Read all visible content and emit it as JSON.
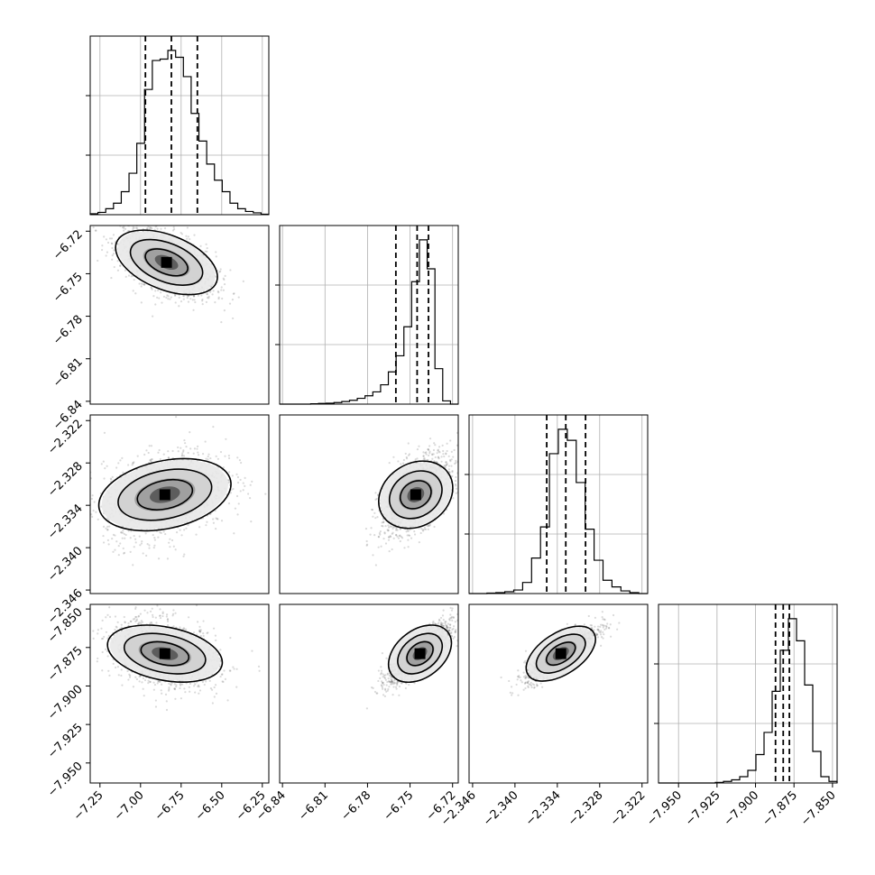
{
  "chart_data": {
    "type": "corner",
    "grid": true,
    "parameters": [
      {
        "ticks": [
          -7.25,
          -7.0,
          -6.75,
          -6.5,
          -6.25
        ],
        "tick_labels": [
          "−7.25",
          "−7.00",
          "−6.75",
          "−6.50",
          "−6.25"
        ],
        "range": [
          -7.31,
          -6.21
        ],
        "quantiles": [
          -6.97,
          -6.81,
          -6.65
        ]
      },
      {
        "ticks": [
          -6.84,
          -6.81,
          -6.78,
          -6.75,
          -6.72
        ],
        "tick_labels": [
          "−6.84",
          "−6.81",
          "−6.78",
          "−6.75",
          "−6.72"
        ],
        "range": [
          -6.842,
          -6.716
        ],
        "quantiles": [
          -6.76,
          -6.745,
          -6.737
        ]
      },
      {
        "ticks": [
          -2.346,
          -2.34,
          -2.334,
          -2.328,
          -2.322
        ],
        "tick_labels": [
          "−2.346",
          "−2.340",
          "−2.334",
          "−2.328",
          "−2.322"
        ],
        "range": [
          -2.3465,
          -2.3212
        ],
        "quantiles": [
          -2.3355,
          -2.3328,
          -2.33
        ]
      },
      {
        "ticks": [
          -7.95,
          -7.925,
          -7.9,
          -7.875,
          -7.85
        ],
        "tick_labels": [
          "−7.950",
          "−7.925",
          "−7.900",
          "−7.875",
          "−7.850"
        ],
        "range": [
          -7.963,
          -7.847
        ],
        "quantiles": [
          -7.887,
          -7.882,
          -7.878
        ]
      }
    ],
    "histograms": [
      {
        "counts": [
          2,
          5,
          13,
          25,
          50,
          90,
          155,
          272,
          335,
          338,
          357,
          342,
          300,
          220,
          160,
          110,
          75,
          50,
          25,
          13,
          7,
          4,
          1
        ]
      },
      {
        "counts": [
          0,
          0,
          0,
          0,
          1,
          2,
          3,
          5,
          8,
          12,
          18,
          26,
          38,
          60,
          100,
          150,
          240,
          380,
          510,
          420,
          110,
          10,
          0
        ]
      },
      {
        "counts": [
          0,
          0,
          1,
          2,
          4,
          8,
          25,
          80,
          150,
          315,
          370,
          345,
          250,
          145,
          75,
          30,
          15,
          6,
          2,
          0
        ]
      },
      {
        "counts": [
          0,
          0,
          0,
          0,
          0,
          0,
          0,
          2,
          5,
          10,
          20,
          40,
          90,
          160,
          290,
          420,
          520,
          450,
          310,
          100,
          20,
          5
        ]
      }
    ],
    "pairs": [
      {
        "x": 0,
        "y": 1,
        "mean": [
          -6.84,
          -6.742
        ],
        "sd": [
          0.12,
          0.01
        ],
        "rho": -0.55
      },
      {
        "x": 0,
        "y": 2,
        "mean": [
          -6.85,
          -2.3325
        ],
        "sd": [
          0.15,
          0.0025
        ],
        "rho": 0.3
      },
      {
        "x": 1,
        "y": 2,
        "mean": [
          -6.746,
          -2.3325
        ],
        "sd": [
          0.01,
          0.0023
        ],
        "rho": 0.55
      },
      {
        "x": 0,
        "y": 3,
        "mean": [
          -6.85,
          -7.879
        ],
        "sd": [
          0.13,
          0.009
        ],
        "rho": -0.3
      },
      {
        "x": 1,
        "y": 3,
        "mean": [
          -6.743,
          -7.879
        ],
        "sd": [
          0.009,
          0.008
        ],
        "rho": 0.8
      },
      {
        "x": 2,
        "y": 3,
        "mean": [
          -2.3335,
          -7.879
        ],
        "sd": [
          0.002,
          0.007
        ],
        "rho": 0.85
      }
    ]
  }
}
